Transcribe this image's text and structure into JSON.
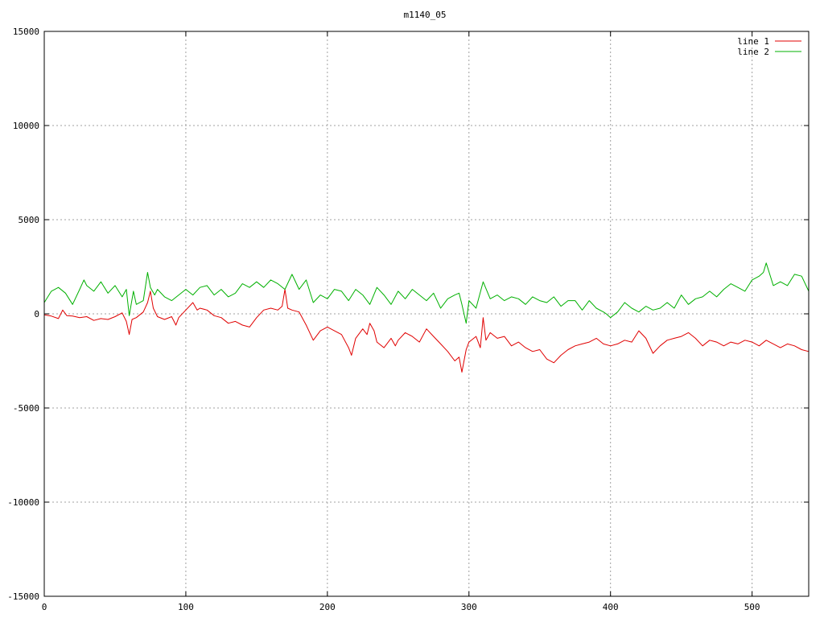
{
  "chart_data": {
    "type": "line",
    "title": "m1140_05",
    "xlabel": "",
    "ylabel": "",
    "xlim": [
      0,
      540
    ],
    "ylim": [
      -15000,
      15000
    ],
    "x_ticks": [
      0,
      100,
      200,
      300,
      400,
      500
    ],
    "y_ticks": [
      -15000,
      -10000,
      -5000,
      0,
      5000,
      10000,
      15000
    ],
    "grid": true,
    "legend_position": "top-right",
    "series": [
      {
        "name": "line 1",
        "color": "#e00000",
        "x": [
          0,
          5,
          10,
          13,
          16,
          20,
          25,
          30,
          35,
          40,
          45,
          50,
          55,
          58,
          60,
          62,
          65,
          70,
          73,
          75,
          77,
          80,
          85,
          90,
          93,
          95,
          100,
          105,
          108,
          110,
          115,
          120,
          125,
          130,
          135,
          140,
          145,
          150,
          155,
          160,
          165,
          168,
          170,
          172,
          175,
          180,
          185,
          190,
          195,
          200,
          205,
          210,
          215,
          217,
          220,
          225,
          228,
          230,
          233,
          235,
          240,
          245,
          248,
          250,
          255,
          260,
          265,
          270,
          275,
          280,
          285,
          290,
          293,
          295,
          298,
          300,
          305,
          308,
          310,
          312,
          315,
          320,
          325,
          330,
          335,
          340,
          345,
          350,
          355,
          360,
          365,
          370,
          375,
          380,
          385,
          390,
          395,
          400,
          405,
          410,
          415,
          420,
          425,
          430,
          435,
          440,
          445,
          450,
          455,
          460,
          465,
          470,
          475,
          480,
          485,
          490,
          495,
          500,
          505,
          510,
          515,
          520,
          525,
          530,
          535,
          540
        ],
        "y": [
          -50,
          -120,
          -250,
          200,
          -100,
          -120,
          -200,
          -150,
          -350,
          -250,
          -300,
          -150,
          50,
          -400,
          -1100,
          -300,
          -200,
          100,
          600,
          1200,
          300,
          -150,
          -300,
          -150,
          -600,
          -200,
          200,
          600,
          200,
          300,
          200,
          -100,
          -200,
          -500,
          -400,
          -600,
          -700,
          -200,
          200,
          300,
          200,
          400,
          1300,
          300,
          200,
          100,
          -600,
          -1400,
          -900,
          -700,
          -900,
          -1100,
          -1800,
          -2200,
          -1300,
          -800,
          -1100,
          -500,
          -900,
          -1500,
          -1800,
          -1300,
          -1700,
          -1400,
          -1000,
          -1200,
          -1500,
          -800,
          -1200,
          -1600,
          -2000,
          -2500,
          -2300,
          -3100,
          -1900,
          -1500,
          -1200,
          -1800,
          -200,
          -1400,
          -1000,
          -1300,
          -1200,
          -1700,
          -1500,
          -1800,
          -2000,
          -1900,
          -2400,
          -2600,
          -2200,
          -1900,
          -1700,
          -1600,
          -1500,
          -1300,
          -1600,
          -1700,
          -1600,
          -1400,
          -1500,
          -900,
          -1300,
          -2100,
          -1700,
          -1400,
          -1300,
          -1200,
          -1000,
          -1300,
          -1700,
          -1400,
          -1500,
          -1700,
          -1500,
          -1600,
          -1400,
          -1500,
          -1700,
          -1400,
          -1600,
          -1800,
          -1600,
          -1700,
          -1900,
          -2000
        ]
      },
      {
        "name": "line 2",
        "color": "#00b000",
        "x": [
          0,
          5,
          10,
          15,
          20,
          25,
          28,
          30,
          35,
          40,
          45,
          50,
          55,
          58,
          60,
          63,
          65,
          70,
          73,
          75,
          78,
          80,
          85,
          90,
          95,
          100,
          105,
          110,
          115,
          120,
          125,
          130,
          135,
          140,
          145,
          150,
          155,
          160,
          165,
          170,
          175,
          180,
          185,
          190,
          195,
          200,
          205,
          210,
          215,
          220,
          225,
          230,
          235,
          240,
          245,
          250,
          255,
          260,
          265,
          270,
          275,
          280,
          285,
          290,
          293,
          295,
          298,
          300,
          305,
          310,
          315,
          320,
          325,
          330,
          335,
          340,
          345,
          350,
          355,
          360,
          365,
          370,
          375,
          380,
          385,
          390,
          395,
          397,
          400,
          405,
          410,
          415,
          420,
          425,
          430,
          435,
          440,
          445,
          450,
          455,
          460,
          465,
          470,
          475,
          480,
          485,
          490,
          495,
          500,
          505,
          508,
          510,
          515,
          520,
          525,
          530,
          535,
          540
        ],
        "y": [
          600,
          1200,
          1400,
          1100,
          500,
          1300,
          1800,
          1500,
          1200,
          1700,
          1100,
          1500,
          900,
          1300,
          -100,
          1200,
          500,
          700,
          2200,
          1400,
          1000,
          1300,
          900,
          700,
          1000,
          1300,
          1000,
          1400,
          1500,
          1000,
          1300,
          900,
          1100,
          1600,
          1400,
          1700,
          1400,
          1800,
          1600,
          1300,
          2100,
          1300,
          1800,
          600,
          1000,
          800,
          1300,
          1200,
          700,
          1300,
          1000,
          500,
          1400,
          1000,
          500,
          1200,
          800,
          1300,
          1000,
          700,
          1100,
          300,
          800,
          1000,
          1100,
          500,
          -500,
          700,
          300,
          1700,
          800,
          1000,
          700,
          900,
          800,
          500,
          900,
          700,
          600,
          900,
          400,
          700,
          700,
          200,
          700,
          300,
          100,
          0,
          -200,
          100,
          600,
          300,
          100,
          400,
          200,
          300,
          600,
          300,
          1000,
          500,
          800,
          900,
          1200,
          900,
          1300,
          1600,
          1400,
          1200,
          1800,
          2000,
          2200,
          2700,
          1500,
          1700,
          1500,
          2100,
          2000,
          1200
        ]
      }
    ]
  }
}
